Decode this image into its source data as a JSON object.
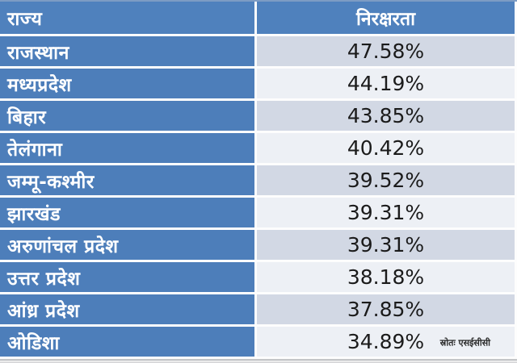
{
  "table": {
    "header": {
      "state": "राज्य",
      "illiteracy": "निरक्षरता"
    },
    "rows": [
      {
        "state": "राजस्थान",
        "value": "47.58%"
      },
      {
        "state": "मध्यप्रदेश",
        "value": "44.19%"
      },
      {
        "state": "बिहार",
        "value": "43.85%"
      },
      {
        "state": "तेलंगाना",
        "value": "40.42%"
      },
      {
        "state": "जम्मू-कश्मीर",
        "value": "39.52%"
      },
      {
        "state": "झारखंड",
        "value": "39.31%"
      },
      {
        "state": "अरुणांचल प्रदेश",
        "value": "39.31%"
      },
      {
        "state": "उत्तर प्रदेश",
        "value": "38.18%"
      },
      {
        "state": "आंध्र प्रदेश",
        "value": "37.85%"
      },
      {
        "state": "ओडिशा",
        "value": "34.89%"
      }
    ],
    "source_note": "स्रोतः एसईसीसी"
  },
  "colors": {
    "header_bg": "#4f81bd",
    "state_column_bg": "#4d7eba",
    "band_dark": "#d2d8e4",
    "band_light": "#edf0f5",
    "divider": "#fdfdfd",
    "header_text": "#ffffff",
    "value_text": "#1b1b1b",
    "footer_strip": "#d2d3d5"
  }
}
